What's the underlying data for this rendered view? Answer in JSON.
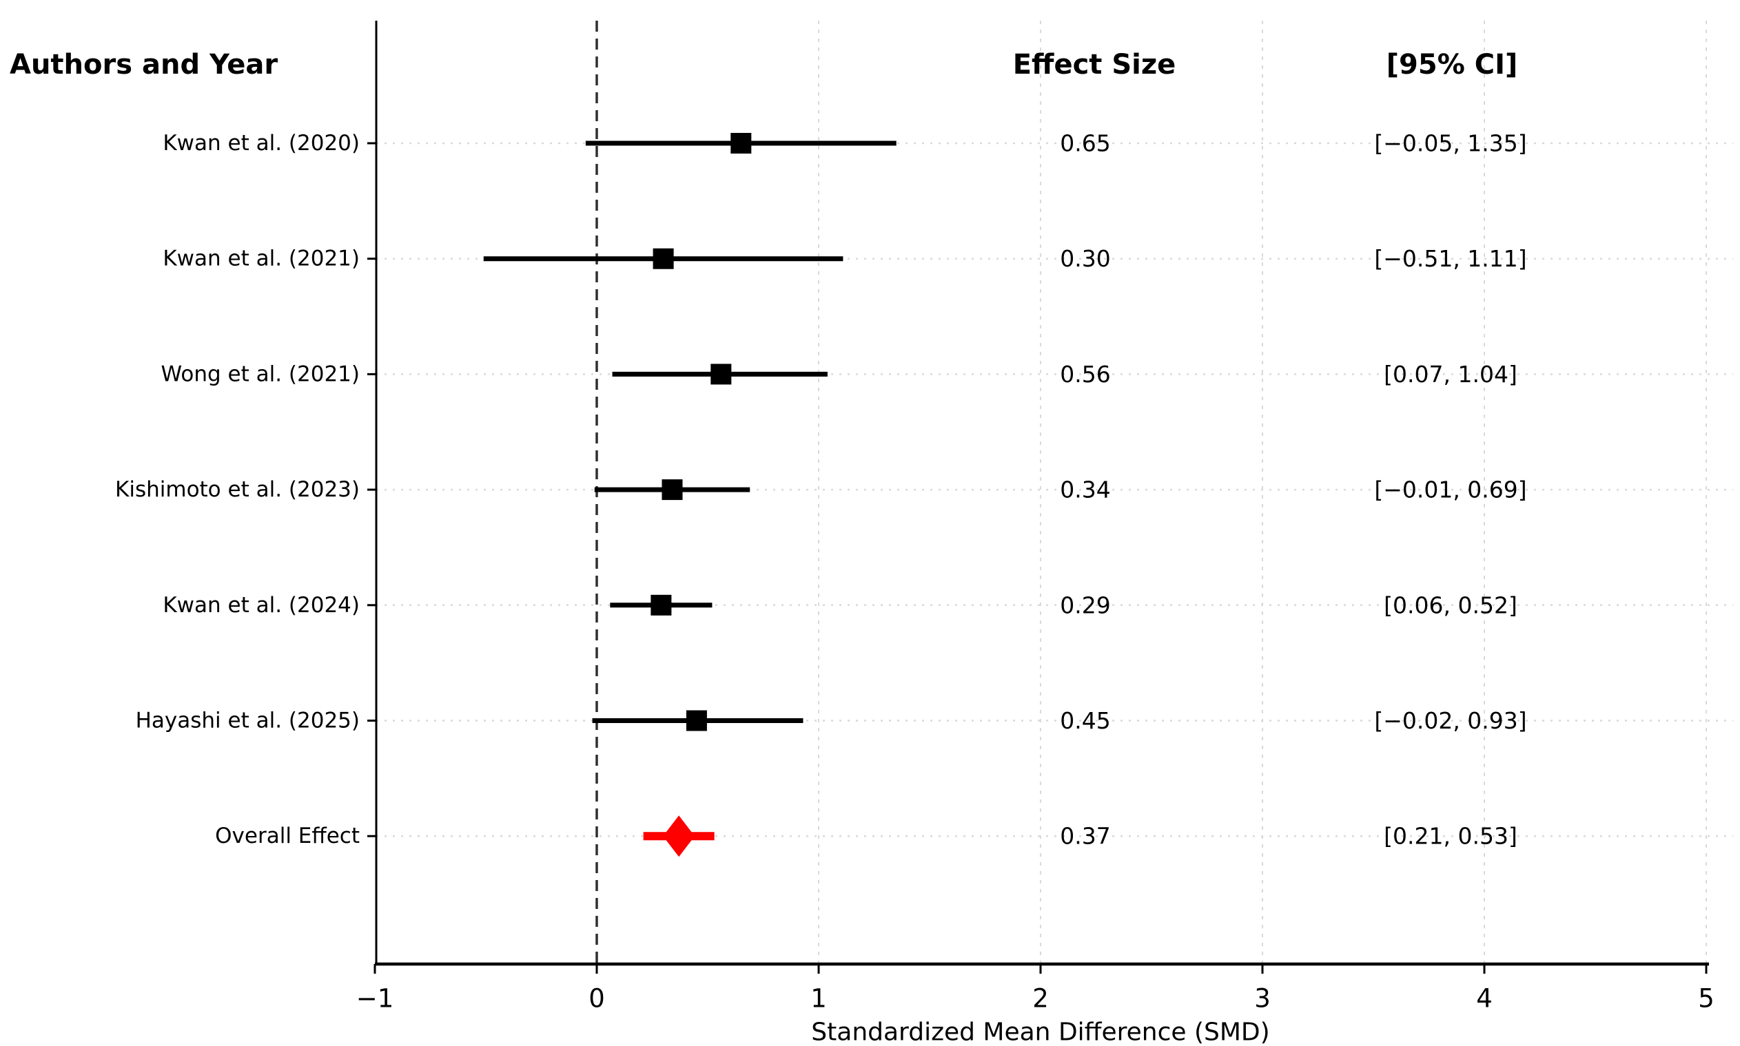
{
  "figure": {
    "background": "#ffffff",
    "columns": {
      "authors_header": "Authors and Year",
      "effect_header": "Effect Size",
      "ci_header": "[95% CI]"
    }
  },
  "chart_data": {
    "type": "forest",
    "title": "",
    "xlabel": "Standardized Mean Difference (SMD)",
    "ylabel": "",
    "xlim": [
      -1,
      5
    ],
    "grid": true,
    "zero_line_x": 0,
    "x_ticks": [
      {
        "value": -1,
        "label": "−1"
      },
      {
        "value": 0,
        "label": "0"
      },
      {
        "value": 1,
        "label": "1"
      },
      {
        "value": 2,
        "label": "2"
      },
      {
        "value": 3,
        "label": "3"
      },
      {
        "value": 4,
        "label": "4"
      },
      {
        "value": 5,
        "label": "5"
      }
    ],
    "studies": [
      {
        "label": "Kwan et al. (2020)",
        "effect": 0.65,
        "ci_low": -0.05,
        "ci_high": 1.35,
        "effect_text": "0.65",
        "ci_text": "[−0.05, 1.35]",
        "marker": "square",
        "color": "#000000"
      },
      {
        "label": "Kwan et al. (2021)",
        "effect": 0.3,
        "ci_low": -0.51,
        "ci_high": 1.11,
        "effect_text": "0.30",
        "ci_text": "[−0.51, 1.11]",
        "marker": "square",
        "color": "#000000"
      },
      {
        "label": "Wong et al. (2021)",
        "effect": 0.56,
        "ci_low": 0.07,
        "ci_high": 1.04,
        "effect_text": "0.56",
        "ci_text": "[0.07, 1.04]",
        "marker": "square",
        "color": "#000000"
      },
      {
        "label": "Kishimoto et al. (2023)",
        "effect": 0.34,
        "ci_low": -0.01,
        "ci_high": 0.69,
        "effect_text": "0.34",
        "ci_text": "[−0.01, 0.69]",
        "marker": "square",
        "color": "#000000"
      },
      {
        "label": "Kwan et al. (2024)",
        "effect": 0.29,
        "ci_low": 0.06,
        "ci_high": 0.52,
        "effect_text": "0.29",
        "ci_text": "[0.06, 0.52]",
        "marker": "square",
        "color": "#000000"
      },
      {
        "label": "Hayashi et al. (2025)",
        "effect": 0.45,
        "ci_low": -0.02,
        "ci_high": 0.93,
        "effect_text": "0.45",
        "ci_text": "[−0.02, 0.93]",
        "marker": "square",
        "color": "#000000"
      },
      {
        "label": "Overall Effect",
        "effect": 0.37,
        "ci_low": 0.21,
        "ci_high": 0.53,
        "effect_text": "0.37",
        "ci_text": "[0.21, 0.53]",
        "marker": "diamond",
        "color": "#ff0000"
      }
    ],
    "colors": {
      "study": "#000000",
      "overall": "#ff0000",
      "grid": "#d9d9d9",
      "zero_line": "#2f2f2f",
      "axis": "#000000"
    },
    "legend_position": "none"
  }
}
